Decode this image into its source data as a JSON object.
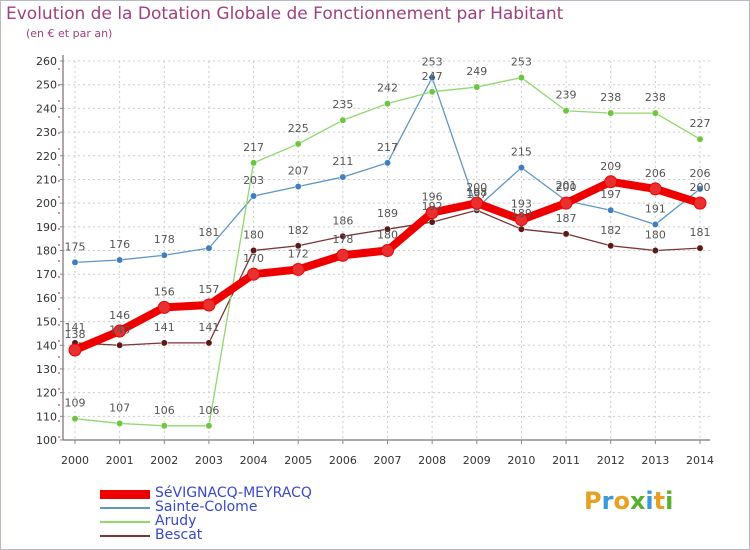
{
  "header": {
    "title": "Evolution de la Dotation Globale de Fonctionnement par Habitant",
    "subtitle": "(en € et par an)"
  },
  "logo": {
    "letters": [
      "P",
      "r",
      "o",
      "x",
      "i",
      "t",
      "i"
    ],
    "colors": [
      "#e8a020",
      "#3a9ad8",
      "#e8a020",
      "#5ab030",
      "#3a9ad8",
      "#e8a020",
      "#5ab030"
    ]
  },
  "chart_data": {
    "type": "line",
    "title": "Evolution de la Dotation Globale de Fonctionnement par Habitant",
    "subtitle": "(en € et par an)",
    "xlabel": "",
    "ylabel": "",
    "x": [
      "2000",
      "2001",
      "2002",
      "2003",
      "2004",
      "2005",
      "2006",
      "2007",
      "2008",
      "2009",
      "2010",
      "2011",
      "2012",
      "2013",
      "2014"
    ],
    "ylim": [
      100,
      260
    ],
    "yticks": [
      100,
      110,
      120,
      130,
      140,
      150,
      160,
      170,
      180,
      190,
      200,
      210,
      220,
      230,
      240,
      250,
      260
    ],
    "grid": true,
    "legend": "bottom-left",
    "series": [
      {
        "name": "SéVIGNACQ-MEYRACQ",
        "color": "#ee0000",
        "marker": "#e83030",
        "values": [
          138,
          146,
          156,
          157,
          170,
          172,
          178,
          180,
          196,
          200,
          193,
          200,
          209,
          206,
          200
        ]
      },
      {
        "name": "Sainte-Colome",
        "color": "#5f97c7",
        "marker": "#3f7fc0",
        "values": [
          175,
          176,
          178,
          181,
          203,
          207,
          211,
          217,
          253,
          198,
          215,
          201,
          197,
          191,
          206
        ]
      },
      {
        "name": "Arudy",
        "color": "#90d86e",
        "marker": "#6cc640",
        "values": [
          109,
          107,
          106,
          106,
          217,
          225,
          235,
          242,
          247,
          249,
          253,
          239,
          238,
          238,
          227
        ]
      },
      {
        "name": "Bescat",
        "color": "#7b3535",
        "marker": "#5a1a1a",
        "values": [
          141,
          140,
          141,
          141,
          180,
          182,
          186,
          189,
          192,
          197,
          189,
          187,
          182,
          180,
          181
        ]
      }
    ]
  }
}
